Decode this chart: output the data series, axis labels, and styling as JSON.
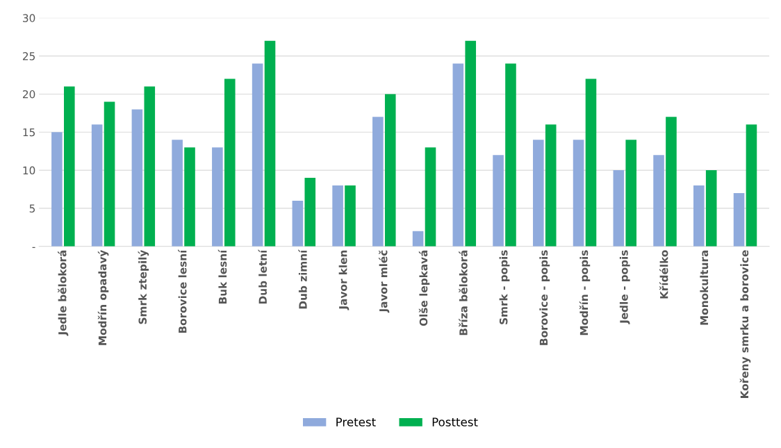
{
  "chart_data": {
    "type": "bar",
    "categories": [
      "Jedle bělokorá",
      "Modřín opadavý",
      "Smrk ztepilý",
      "Borovice lesní",
      "Buk lesní",
      "Dub letní",
      "Dub zimní",
      "Javor klen",
      "Javor mléč",
      "Olše lepkavá",
      "Bříza bělokorá",
      "Smrk - popis",
      "Borovice - popis",
      "Modřín - popis",
      "Jedle - popis",
      "Křídélko",
      "Monokultura",
      "Kořeny smrku a borovice"
    ],
    "series": [
      {
        "name": "Pretest",
        "color": "#8faadc",
        "values": [
          15,
          16,
          18,
          14,
          13,
          24,
          6,
          8,
          17,
          2,
          24,
          12,
          14,
          14,
          10,
          12,
          8,
          7
        ]
      },
      {
        "name": "Posttest",
        "color": "#00b050",
        "values": [
          21,
          19,
          21,
          13,
          22,
          27,
          9,
          8,
          20,
          13,
          27,
          24,
          16,
          22,
          14,
          17,
          10,
          16
        ]
      }
    ],
    "ylim": [
      0,
      30
    ],
    "yticks": [
      {
        "value": 0,
        "label": "-"
      },
      5,
      10,
      15,
      20,
      25,
      30
    ],
    "grid": "y",
    "legend": "bottom"
  }
}
